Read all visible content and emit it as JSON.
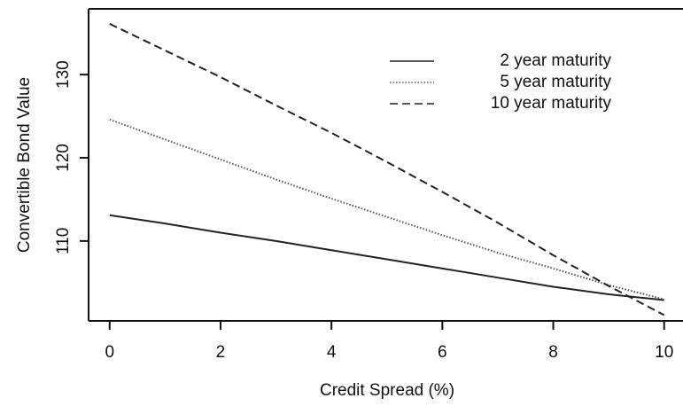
{
  "chart_data": {
    "type": "line",
    "xlabel": "Credit Spread (%)",
    "ylabel": "Convertible Bond Value",
    "x": [
      0,
      1,
      2,
      3,
      4,
      5,
      6,
      7,
      8,
      9,
      10
    ],
    "series": [
      {
        "name": "2 year maturity",
        "color": "#222222",
        "dash": "solid",
        "values": [
          113.1,
          112.1,
          111.0,
          110.0,
          108.9,
          107.8,
          106.7,
          105.6,
          104.5,
          103.6,
          102.9
        ]
      },
      {
        "name": "5 year maturity",
        "color": "#555555",
        "dash": "dotted",
        "values": [
          124.6,
          122.2,
          119.8,
          117.4,
          115.1,
          112.9,
          110.7,
          108.6,
          106.7,
          104.7,
          103.0
        ]
      },
      {
        "name": "10 year maturity",
        "color": "#222222",
        "dash": "dashed",
        "values": [
          136.1,
          132.9,
          129.7,
          126.3,
          123.0,
          119.5,
          115.9,
          112.2,
          108.3,
          104.6,
          101.1
        ]
      }
    ],
    "xlim": [
      -0.38,
      10.34
    ],
    "xticks": [
      0,
      2,
      4,
      6,
      8,
      10
    ],
    "ylim": [
      100.4,
      137.9
    ],
    "yticks": [
      110,
      120,
      130
    ],
    "legend": "upper right"
  }
}
